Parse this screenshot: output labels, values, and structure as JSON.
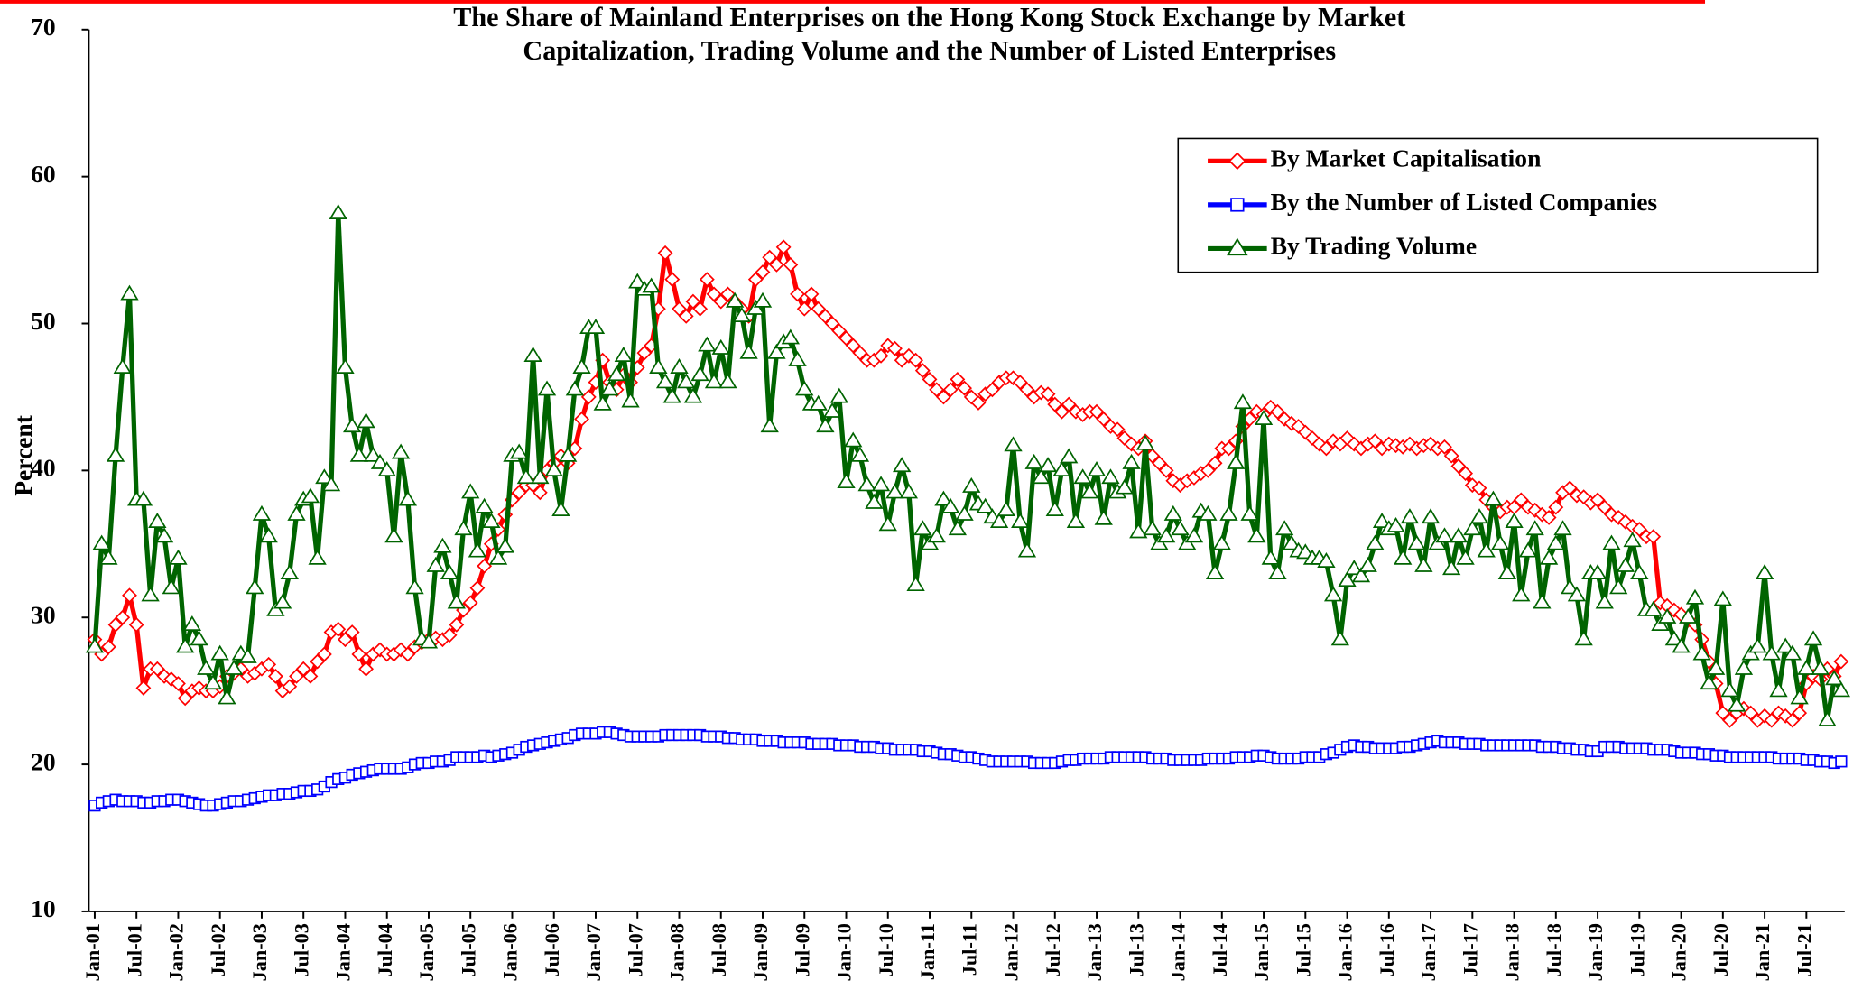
{
  "chart_data": {
    "type": "line",
    "title": [
      "The Share of Mainland Enterprises on the Hong Kong Stock Exchange by Market",
      "Capitalization, Trading Volume and the Number of Listed Enterprises"
    ],
    "y_label": "Percent",
    "ylim": [
      10,
      70
    ],
    "yticks": [
      10,
      20,
      30,
      40,
      50,
      60,
      70
    ],
    "grid": false,
    "legend": "upper right",
    "categories": [
      "Jan-01",
      null,
      null,
      null,
      null,
      null,
      "Jul-01",
      null,
      null,
      null,
      null,
      null,
      "Jan-02",
      null,
      null,
      null,
      null,
      null,
      "Jul-02",
      null,
      null,
      null,
      null,
      null,
      "Jan-03",
      null,
      null,
      null,
      null,
      null,
      "Jul-03",
      null,
      null,
      null,
      null,
      null,
      "Jan-04",
      null,
      null,
      null,
      null,
      null,
      "Jul-04",
      null,
      null,
      null,
      null,
      null,
      "Jan-05",
      null,
      null,
      null,
      null,
      null,
      "Jul-05",
      null,
      null,
      null,
      null,
      null,
      "Jan-06",
      null,
      null,
      null,
      null,
      null,
      "Jul-06",
      null,
      null,
      null,
      null,
      null,
      "Jan-07",
      null,
      null,
      null,
      null,
      null,
      "Jul-07",
      null,
      null,
      null,
      null,
      null,
      "Jan-08",
      null,
      null,
      null,
      null,
      null,
      "Jul-08",
      null,
      null,
      null,
      null,
      null,
      "Jan-09",
      null,
      null,
      null,
      null,
      null,
      "Jul-09",
      null,
      null,
      null,
      null,
      null,
      "Jan-10",
      null,
      null,
      null,
      null,
      null,
      "Jul-10",
      null,
      null,
      null,
      null,
      null,
      "Jan-11",
      null,
      null,
      null,
      null,
      null,
      "Jul-11",
      null,
      null,
      null,
      null,
      null,
      "Jan-12",
      null,
      null,
      null,
      null,
      null,
      "Jul-12",
      null,
      null,
      null,
      null,
      null,
      "Jan-13",
      null,
      null,
      null,
      null,
      null,
      "Jul-13",
      null,
      null,
      null,
      null,
      null,
      "Jan-14",
      null,
      null,
      null,
      null,
      null,
      "Jul-14",
      null,
      null,
      null,
      null,
      null,
      "Jan-15",
      null,
      null,
      null,
      null,
      null,
      "Jul-15",
      null,
      null,
      null,
      null,
      null,
      "Jan-16",
      null,
      null,
      null,
      null,
      null,
      "Jul-16",
      null,
      null,
      null,
      null,
      null,
      "Jan-17",
      null,
      null,
      null,
      null,
      null,
      "Jul-17",
      null,
      null,
      null,
      null,
      null,
      "Jan-18",
      null,
      null,
      null,
      null,
      null,
      "Jul-18",
      null,
      null,
      null,
      null,
      null,
      "Jan-19",
      null,
      null,
      null,
      null,
      null,
      "Jul-19",
      null,
      null,
      null,
      null,
      null,
      "Jan-20",
      null,
      null,
      null,
      null,
      null,
      "Jul-20",
      null,
      null,
      null,
      null,
      null,
      "Jan-21",
      null,
      null,
      null,
      null,
      null,
      "Jul-21",
      null,
      null,
      null,
      null,
      null
    ],
    "series": [
      {
        "name": "By Market Capitalisation",
        "color": "#ff0000",
        "marker": "diamond",
        "values": [
          28.5,
          27.5,
          28,
          29.5,
          30,
          31.5,
          29.5,
          25.2,
          26.5,
          26.5,
          26,
          25.8,
          25.5,
          24.5,
          25,
          25.2,
          25,
          25,
          25.3,
          26,
          26.2,
          26.5,
          26,
          26.2,
          26.5,
          26.8,
          26,
          25,
          25.3,
          26,
          26.5,
          26,
          27,
          27.5,
          29,
          29.2,
          28.5,
          29,
          27.5,
          26.5,
          27.5,
          27.8,
          27.5,
          27.5,
          27.8,
          27.5,
          28,
          28.3,
          28.5,
          28.6,
          28.5,
          28.8,
          29.5,
          30.5,
          31,
          32,
          33.5,
          35,
          36,
          37,
          38,
          38.5,
          39,
          39,
          38.5,
          40,
          40.5,
          41,
          40.5,
          41.5,
          43.5,
          45,
          46,
          47.5,
          46,
          45.5,
          46.5,
          46,
          47,
          48,
          48.5,
          51,
          54.8,
          53,
          51,
          50.5,
          51.5,
          51,
          53,
          52,
          51.5,
          52,
          51.5,
          51,
          50.5,
          53,
          53.5,
          54.5,
          54,
          55.2,
          54,
          52,
          51,
          52,
          51,
          50.5,
          50,
          49.5,
          49,
          48.5,
          48,
          47.5,
          47.5,
          47.8,
          48.5,
          48.3,
          47.5,
          47.8,
          47.5,
          46.8,
          46.2,
          45.5,
          45,
          45.5,
          46.2,
          45.6,
          45,
          44.6,
          45.2,
          45.5,
          46,
          46.3,
          46.3,
          46,
          45.5,
          45,
          45.3,
          45.2,
          44.5,
          44,
          44.5,
          44,
          43.8,
          44,
          44,
          43.5,
          43,
          42.8,
          42.2,
          41.8,
          41.5,
          42,
          41,
          40.5,
          40,
          39.3,
          39,
          39.3,
          39.5,
          39.8,
          40,
          40.5,
          41.5,
          41.5,
          42,
          43,
          43.5,
          44,
          43.8,
          44.3,
          44,
          43.5,
          43.2,
          43,
          42.6,
          42.2,
          41.8,
          41.5,
          42,
          41.8,
          42.2,
          41.8,
          41.5,
          41.8,
          42,
          41.5,
          41.8,
          41.7,
          41.6,
          41.8,
          41.5,
          41.7,
          41.8,
          41.5,
          41.6,
          41,
          40.3,
          39.8,
          39,
          38.8,
          38,
          37.5,
          37.2,
          37.5,
          37.5,
          38,
          37.5,
          37.3,
          37,
          36.8,
          37.5,
          38.5,
          38.8,
          38.3,
          38.2,
          37.8,
          38,
          37.5,
          37,
          36.8,
          36.5,
          36.2,
          36,
          35.5,
          35.5,
          31,
          30.8,
          30.5,
          30.2,
          29.8,
          29.5,
          28.5,
          27,
          25.5,
          23.5,
          23,
          23.5,
          23.8,
          23.5,
          23,
          23.3,
          23,
          23.5,
          23.3,
          23,
          23.5,
          25.5,
          26,
          25.8,
          26.5,
          26,
          27
        ]
      },
      {
        "name": "By the Number of Listed Companies",
        "color": "#0000ff",
        "marker": "square",
        "values": [
          17.2,
          17.4,
          17.5,
          17.6,
          17.5,
          17.5,
          17.5,
          17.4,
          17.4,
          17.5,
          17.5,
          17.6,
          17.6,
          17.5,
          17.4,
          17.3,
          17.2,
          17.2,
          17.3,
          17.4,
          17.5,
          17.5,
          17.6,
          17.7,
          17.8,
          17.9,
          17.9,
          18,
          18,
          18.1,
          18.2,
          18.2,
          18.3,
          18.5,
          18.8,
          19,
          19.1,
          19.3,
          19.4,
          19.5,
          19.6,
          19.7,
          19.7,
          19.7,
          19.7,
          19.8,
          20,
          20.1,
          20.1,
          20.2,
          20.2,
          20.3,
          20.5,
          20.5,
          20.5,
          20.5,
          20.6,
          20.5,
          20.6,
          20.7,
          20.8,
          21,
          21.2,
          21.3,
          21.4,
          21.5,
          21.6,
          21.7,
          21.8,
          22,
          22.1,
          22.1,
          22.1,
          22.2,
          22.2,
          22.1,
          22,
          21.9,
          21.9,
          21.9,
          21.9,
          21.9,
          22,
          22,
          22,
          22,
          22,
          22,
          21.9,
          21.9,
          21.9,
          21.8,
          21.8,
          21.7,
          21.7,
          21.7,
          21.6,
          21.6,
          21.6,
          21.5,
          21.5,
          21.5,
          21.5,
          21.4,
          21.4,
          21.4,
          21.4,
          21.3,
          21.3,
          21.3,
          21.2,
          21.2,
          21.2,
          21.1,
          21.1,
          21,
          21,
          21,
          21,
          20.9,
          20.9,
          20.8,
          20.7,
          20.7,
          20.6,
          20.5,
          20.5,
          20.4,
          20.3,
          20.2,
          20.2,
          20.2,
          20.2,
          20.2,
          20.2,
          20.1,
          20.1,
          20.1,
          20.1,
          20.2,
          20.3,
          20.3,
          20.4,
          20.4,
          20.4,
          20.4,
          20.5,
          20.5,
          20.5,
          20.5,
          20.5,
          20.5,
          20.4,
          20.4,
          20.4,
          20.3,
          20.3,
          20.3,
          20.3,
          20.3,
          20.4,
          20.4,
          20.4,
          20.4,
          20.5,
          20.5,
          20.5,
          20.6,
          20.6,
          20.5,
          20.4,
          20.4,
          20.4,
          20.4,
          20.5,
          20.5,
          20.5,
          20.7,
          20.8,
          21,
          21.2,
          21.3,
          21.2,
          21.2,
          21.1,
          21.1,
          21.1,
          21.1,
          21.2,
          21.2,
          21.3,
          21.4,
          21.5,
          21.6,
          21.5,
          21.5,
          21.5,
          21.4,
          21.4,
          21.4,
          21.3,
          21.3,
          21.3,
          21.3,
          21.3,
          21.3,
          21.3,
          21.3,
          21.2,
          21.2,
          21.2,
          21.1,
          21.1,
          21,
          21,
          20.9,
          20.9,
          21.2,
          21.2,
          21.2,
          21.1,
          21.1,
          21.1,
          21.1,
          21,
          21,
          21,
          20.9,
          20.8,
          20.8,
          20.8,
          20.7,
          20.7,
          20.6,
          20.6,
          20.5,
          20.5,
          20.5,
          20.5,
          20.5,
          20.5,
          20.5,
          20.4,
          20.4,
          20.4,
          20.4,
          20.3,
          20.3,
          20.2,
          20.2,
          20.1,
          20.2
        ]
      },
      {
        "name": "By Trading Volume",
        "color": "#006400",
        "marker": "triangle",
        "values": [
          28,
          35,
          34,
          41,
          47,
          52,
          38,
          38,
          31.5,
          36.5,
          35.5,
          32,
          34,
          28,
          29.5,
          28.5,
          26.5,
          25.5,
          27.5,
          24.5,
          26.5,
          27.5,
          27.3,
          32,
          37,
          35.5,
          30.5,
          31,
          33,
          37,
          38,
          38.2,
          34,
          39.5,
          39,
          57.5,
          47,
          43,
          41,
          43.3,
          41,
          40.5,
          40,
          35.5,
          41.2,
          38,
          32,
          28.5,
          28.3,
          33.5,
          34.8,
          33,
          31,
          36,
          38.5,
          34.5,
          37.5,
          36.5,
          34,
          34.8,
          41,
          41.2,
          39.5,
          47.8,
          39.5,
          45.5,
          40,
          37.3,
          41,
          45.5,
          47,
          49.7,
          49.7,
          44.5,
          45.5,
          46.5,
          47.8,
          44.7,
          52.8,
          52.3,
          52.5,
          47,
          46,
          45,
          47,
          46,
          45,
          46.5,
          48.5,
          46,
          48.3,
          46,
          51.5,
          50.5,
          48,
          51,
          51.5,
          43,
          48,
          48.7,
          49,
          47.5,
          45.5,
          44.5,
          44.5,
          43,
          44,
          45,
          39.2,
          42,
          41,
          39,
          37.8,
          39,
          36.3,
          38.5,
          40.3,
          38.5,
          32.2,
          36,
          35,
          35.5,
          38,
          37.5,
          36,
          37,
          38.9,
          37.7,
          37.5,
          36.8,
          36.5,
          37.3,
          41.7,
          36.5,
          34.5,
          40.5,
          39.5,
          40.3,
          37.3,
          40,
          40.9,
          36.5,
          39.5,
          38.5,
          40,
          36.7,
          39.5,
          38.5,
          38.8,
          40.5,
          35.8,
          41.8,
          36,
          35,
          35.5,
          37,
          36,
          35,
          35.5,
          37.2,
          37,
          33,
          35,
          37,
          40.5,
          44.6,
          37,
          35.5,
          43.5,
          34,
          33,
          36,
          35,
          34.5,
          34.4,
          34,
          34,
          33.8,
          31.5,
          28.5,
          32.5,
          33.3,
          32.8,
          33.5,
          35,
          36.5,
          36,
          36.2,
          34,
          36.8,
          35,
          33.5,
          36.8,
          35,
          35.5,
          33.3,
          35.5,
          34,
          36,
          36.8,
          34.5,
          38,
          35,
          33,
          36.5,
          31.5,
          34.5,
          36,
          31,
          34,
          35,
          36,
          32,
          31.5,
          28.5,
          33,
          33,
          31,
          35,
          32,
          33.5,
          35.2,
          33,
          30.5,
          30.5,
          29.5,
          30,
          28.5,
          28,
          30,
          31.3,
          27.5,
          25.5,
          26.5,
          31.2,
          25,
          24,
          26.5,
          27.5,
          28,
          33,
          27.5,
          25,
          28,
          27.5,
          24.5,
          26.5,
          28.5,
          26.5,
          23,
          25.8,
          25
        ]
      }
    ]
  }
}
